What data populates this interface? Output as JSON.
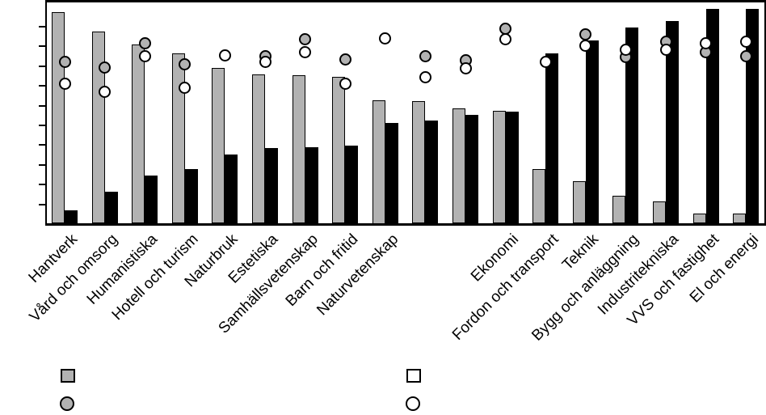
{
  "chart_data": {
    "type": "bar",
    "title": "",
    "xlabel": "",
    "ylabel": "",
    "categories": [
      "Hantverk",
      "Vård och omsorg",
      "Humanistiska",
      "Hotell och turism",
      "Naturbruk",
      "Estetiska",
      "Samhällsvetenskap",
      "Barn och fritid",
      "Naturvetenskap",
      "",
      "",
      "Ekonomi",
      "Fordon och transport",
      "Teknik",
      "Bygg och anläggning",
      "Industritekniska",
      "VVS och fastighet",
      "El och energi"
    ],
    "series": [
      {
        "name": "gray-bars",
        "kind": "bar",
        "marker": "square",
        "color": "#b2b2b2",
        "values": [
          107,
          97,
          90.5,
          86,
          78.5,
          75.5,
          75,
          74,
          62.5,
          62,
          58,
          57,
          27.5,
          21.5,
          14,
          11,
          5,
          5
        ]
      },
      {
        "name": "black-bars",
        "kind": "bar",
        "marker": "square",
        "color": "#000000",
        "values": [
          6.5,
          16,
          24,
          27.5,
          35,
          38,
          38.5,
          39.5,
          51,
          52,
          55,
          56.5,
          86,
          92.5,
          99,
          102.5,
          108.5,
          108.5
        ]
      },
      {
        "name": "gray-markers",
        "kind": "scatter",
        "marker": "circle",
        "color": "#b2b2b2",
        "values": [
          82,
          79.5,
          91.5,
          81,
          null,
          85,
          93.5,
          83.5,
          null,
          85,
          83,
          99,
          null,
          96,
          84.5,
          92.5,
          87,
          85
        ]
      },
      {
        "name": "white-markers",
        "kind": "scatter",
        "marker": "circle",
        "color": "#ffffff",
        "values": [
          71,
          67,
          85,
          69,
          85.5,
          82,
          87,
          71,
          94,
          74.5,
          79,
          93.5,
          82,
          90.5,
          88.5,
          88.5,
          91.5,
          92.5
        ]
      }
    ],
    "ylim": [
      0,
      113
    ],
    "ytick_step": 10,
    "ytick_count": 10,
    "ytick_labels_visible": false,
    "grid": false,
    "legend_position": "bottom",
    "legend": [
      {
        "marker": "square",
        "color": "#b2b2b2",
        "label": ""
      },
      {
        "marker": "circle",
        "color": "#b2b2b2",
        "label": ""
      },
      {
        "marker": "square",
        "color": "#ffffff",
        "label": ""
      },
      {
        "marker": "circle",
        "color": "#ffffff",
        "label": ""
      }
    ]
  }
}
